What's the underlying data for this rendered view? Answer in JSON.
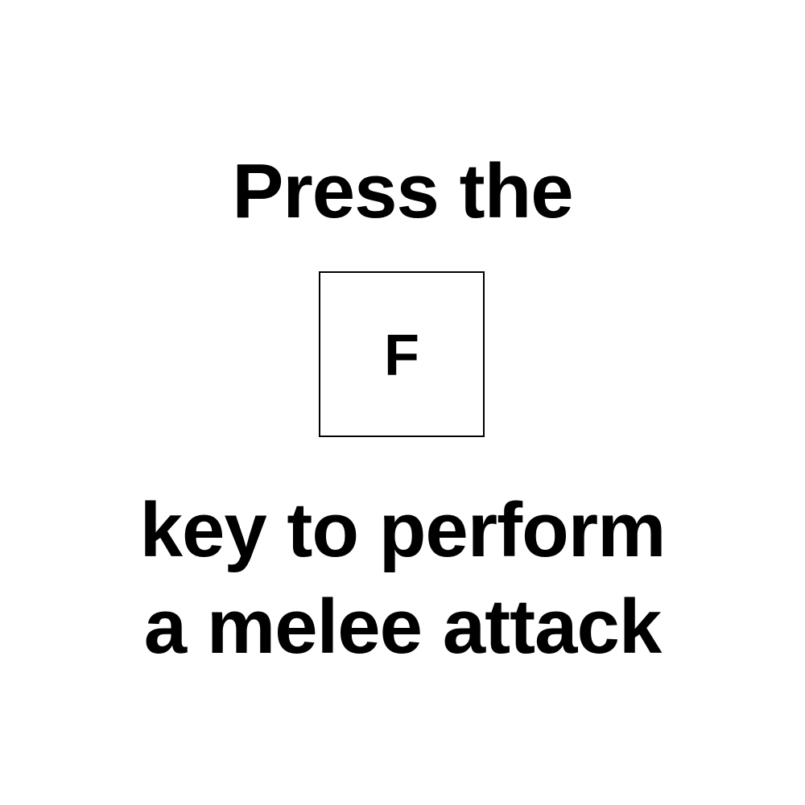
{
  "prompt": {
    "line_top": "Press the",
    "key": "F",
    "line_bottom_1": "key to perform",
    "line_bottom_2": "a melee attack"
  },
  "colors": {
    "background": "#ffffff",
    "text": "#000000",
    "key_border": "#000000"
  }
}
